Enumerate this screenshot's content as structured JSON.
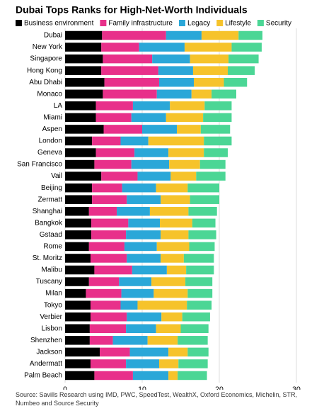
{
  "chart_data": {
    "type": "stacked-bar-horizontal",
    "title": "Dubai Tops Ranks for High-Net-Worth Individuals",
    "source": "Source: Savills Research using IMD, PWC, SpeedTest, WealthX, Oxford Economics, Michelin, STR, Numbeo and Source Security",
    "categories": [
      "Dubai",
      "New York",
      "Singapore",
      "Hong Kong",
      "Abu Dhabi",
      "Monaco",
      "LA",
      "Miami",
      "Aspen",
      "London",
      "Geneva",
      "San Francisco",
      "Vail",
      "Beijing",
      "Zermatt",
      "Shanghai",
      "Bangkok",
      "Gstaad",
      "Rome",
      "St. Moritz",
      "Malibu",
      "Tuscany",
      "Milan",
      "Tokyo",
      "Verbier",
      "Lisbon",
      "Shenzhen",
      "Jackson",
      "Andermatt",
      "Palm Beach"
    ],
    "series": [
      {
        "name": "Business environment",
        "color": "#000000",
        "values": [
          4.8,
          4.7,
          4.9,
          4.7,
          5.1,
          4.9,
          4.0,
          4.0,
          5.0,
          3.5,
          4.0,
          3.8,
          4.7,
          3.5,
          3.5,
          3.1,
          3.4,
          3.4,
          3.1,
          3.3,
          3.8,
          3.1,
          2.7,
          3.3,
          3.3,
          3.2,
          3.2,
          4.5,
          3.3,
          3.8
        ]
      },
      {
        "name": "Family infrastructure",
        "color": "#e8308a",
        "values": [
          8.3,
          4.9,
          6.4,
          7.4,
          7.1,
          7.0,
          4.8,
          4.6,
          5.0,
          3.7,
          5.0,
          4.8,
          4.7,
          3.9,
          4.5,
          3.6,
          4.8,
          4.5,
          4.6,
          4.7,
          4.9,
          3.9,
          4.6,
          3.9,
          4.7,
          4.7,
          3.0,
          3.9,
          4.6,
          5.0
        ]
      },
      {
        "name": "Legacy",
        "color": "#2aa7d8",
        "values": [
          4.6,
          5.9,
          4.9,
          4.5,
          4.5,
          4.5,
          4.8,
          4.5,
          4.5,
          3.6,
          4.4,
          4.9,
          4.3,
          4.4,
          4.4,
          4.3,
          4.1,
          4.5,
          4.2,
          4.4,
          4.5,
          4.2,
          4.2,
          2.2,
          4.5,
          3.9,
          4.5,
          5.0,
          4.3,
          4.6
        ]
      },
      {
        "name": "Lifestyle",
        "color": "#f6c32b",
        "values": [
          4.8,
          6.1,
          5.0,
          4.5,
          3.9,
          2.6,
          4.5,
          4.8,
          3.1,
          7.2,
          4.6,
          4.0,
          3.3,
          4.1,
          3.8,
          5.0,
          4.2,
          3.6,
          4.2,
          3.0,
          2.5,
          4.4,
          4.4,
          6.4,
          2.7,
          3.2,
          3.9,
          2.5,
          2.5,
          1.2
        ]
      },
      {
        "name": "Security",
        "color": "#4bd695",
        "values": [
          3.1,
          3.9,
          3.9,
          3.5,
          3.0,
          3.2,
          3.5,
          3.7,
          3.8,
          3.6,
          3.1,
          3.3,
          3.8,
          4.1,
          3.8,
          3.7,
          3.0,
          3.6,
          3.3,
          3.9,
          3.6,
          3.5,
          3.2,
          3.2,
          3.6,
          3.6,
          3.9,
          2.7,
          3.8,
          3.8
        ]
      }
    ],
    "xlim": [
      0,
      32
    ],
    "xticks": [
      0,
      10,
      20,
      30
    ],
    "grid": true
  }
}
